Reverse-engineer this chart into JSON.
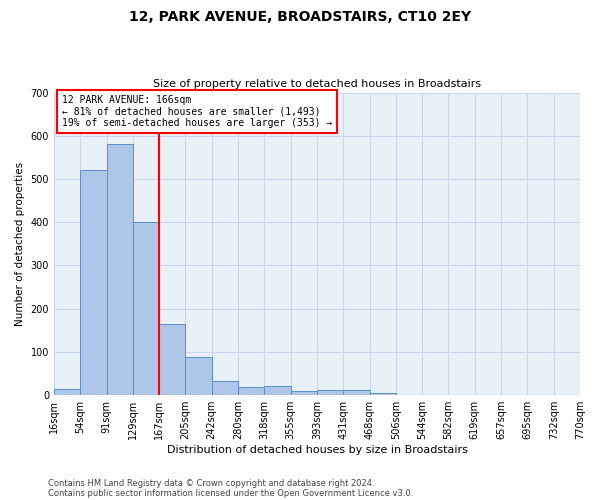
{
  "title": "12, PARK AVENUE, BROADSTAIRS, CT10 2EY",
  "subtitle": "Size of property relative to detached houses in Broadstairs",
  "xlabel": "Distribution of detached houses by size in Broadstairs",
  "ylabel": "Number of detached properties",
  "bar_values": [
    15,
    520,
    580,
    400,
    165,
    88,
    33,
    18,
    22,
    10,
    12,
    12,
    5,
    0,
    0,
    0,
    0,
    0,
    0,
    0
  ],
  "tick_labels": [
    "16sqm",
    "54sqm",
    "91sqm",
    "129sqm",
    "167sqm",
    "205sqm",
    "242sqm",
    "280sqm",
    "318sqm",
    "355sqm",
    "393sqm",
    "431sqm",
    "468sqm",
    "506sqm",
    "544sqm",
    "582sqm",
    "619sqm",
    "657sqm",
    "695sqm",
    "732sqm",
    "770sqm"
  ],
  "bar_color": "#aec6e8",
  "bar_edge_color": "#5b8dc8",
  "grid_color": "#c8d8ec",
  "background_color": "#e8f0f8",
  "red_line_index": 4,
  "annotation_text": "12 PARK AVENUE: 166sqm\n← 81% of detached houses are smaller (1,493)\n19% of semi-detached houses are larger (353) →",
  "annotation_box_color": "white",
  "annotation_border_color": "red",
  "ylim": [
    0,
    700
  ],
  "yticks": [
    0,
    100,
    200,
    300,
    400,
    500,
    600,
    700
  ],
  "footer_line1": "Contains HM Land Registry data © Crown copyright and database right 2024.",
  "footer_line2": "Contains public sector information licensed under the Open Government Licence v3.0."
}
